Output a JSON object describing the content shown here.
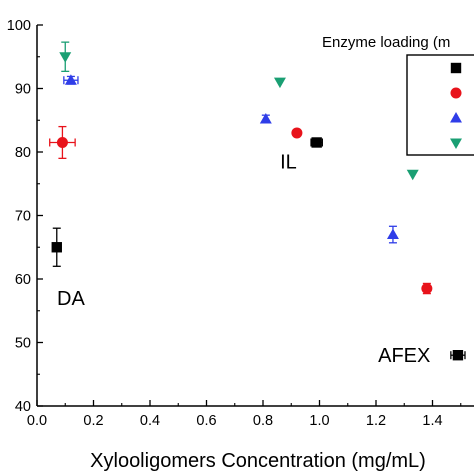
{
  "chart_data": {
    "type": "scatter",
    "title": "",
    "xlabel": "Xylooligomers Concentration (mg/mL)",
    "ylabel": "",
    "xlim": [
      0.0,
      1.58
    ],
    "ylim": [
      40,
      100
    ],
    "xticks": [
      "0.0",
      "0.2",
      "0.4",
      "0.6",
      "0.8",
      "1.0",
      "1.2",
      "1.4"
    ],
    "yticks": [
      "40",
      "50",
      "60",
      "70",
      "80",
      "90",
      "100"
    ],
    "grid": false,
    "legend": {
      "title": "Enzyme loading (m",
      "placement": "top-right"
    },
    "series": [
      {
        "marker": "square",
        "color": "#000000",
        "points": [
          {
            "x": 0.07,
            "y": 65.0,
            "yerr": 3.0,
            "xerr": 0.0
          },
          {
            "x": 0.99,
            "y": 81.5,
            "yerr": 0.0,
            "xerr": 0.02
          },
          {
            "x": 1.49,
            "y": 48.0,
            "yerr": 0.0,
            "xerr": 0.025
          }
        ]
      },
      {
        "marker": "circle",
        "color": "#e8131b",
        "points": [
          {
            "x": 0.09,
            "y": 81.5,
            "yerr": 2.5,
            "xerr": 0.045
          },
          {
            "x": 0.92,
            "y": 83.0,
            "yerr": 0.0,
            "xerr": 0.0
          },
          {
            "x": 1.38,
            "y": 58.5,
            "yerr": 0.8,
            "xerr": 0.0
          }
        ]
      },
      {
        "marker": "triangle-up",
        "color": "#2f3de8",
        "points": [
          {
            "x": 0.12,
            "y": 91.3,
            "yerr": 0.6,
            "xerr": 0.025
          },
          {
            "x": 0.81,
            "y": 85.2,
            "yerr": 0.6,
            "xerr": 0.0
          },
          {
            "x": 1.26,
            "y": 67.0,
            "yerr": 1.3,
            "xerr": 0.0
          }
        ]
      },
      {
        "marker": "triangle-down",
        "color": "#1a9f73",
        "points": [
          {
            "x": 0.1,
            "y": 95.0,
            "yerr": 2.3,
            "xerr": 0.0
          },
          {
            "x": 0.86,
            "y": 91.0,
            "yerr": 0.0,
            "xerr": 0.0
          },
          {
            "x": 1.33,
            "y": 76.5,
            "yerr": 0.0,
            "xerr": 0.0
          }
        ]
      }
    ],
    "annotations": [
      {
        "text": "DA",
        "x": 0.12,
        "y": 57.0
      },
      {
        "text": "IL",
        "x": 0.89,
        "y": 78.5
      },
      {
        "text": "AFEX",
        "x": 1.3,
        "y": 48.0
      }
    ]
  }
}
